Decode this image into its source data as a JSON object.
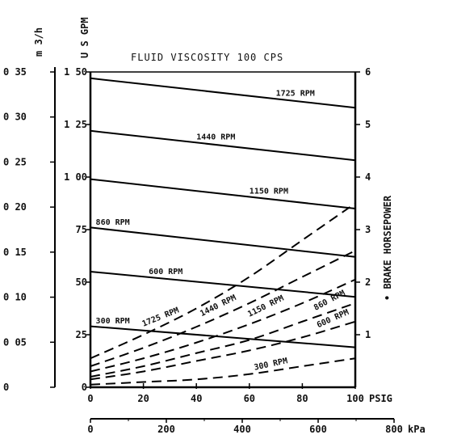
{
  "chart_data": {
    "type": "line",
    "title": "FLUID VISCOSITY 100 CPS",
    "x_axis": {
      "label": "PSIG",
      "ticks": [
        "0",
        "20",
        "40",
        "60",
        "80",
        "100"
      ],
      "range": [
        0,
        100
      ]
    },
    "x2_axis": {
      "label": "kPa",
      "ticks": [
        "0",
        "200",
        "400",
        "600",
        "800"
      ],
      "range": [
        0,
        800
      ]
    },
    "y_m3h_axis": {
      "label": "m 3/h",
      "ticks": [
        "0",
        "0 05",
        "0 10",
        "0 15",
        "0 20",
        "0 25",
        "0 30",
        "0 35"
      ],
      "range": [
        0,
        0.35
      ]
    },
    "y_gpm_axis": {
      "label": "U S GPM",
      "ticks": [
        "0",
        "25",
        "50",
        "75",
        "1 00",
        "1 25",
        "1 50"
      ],
      "range": [
        0,
        1.5
      ]
    },
    "y_bhp_axis": {
      "label": "BRAKE HORSEPOWER",
      "bullet": "•",
      "ticks": [
        "1",
        "2",
        "3",
        "4",
        "5",
        "6"
      ],
      "range": [
        0,
        6
      ]
    },
    "flow_series": [
      {
        "name": "1725 RPM",
        "axis": "gpm",
        "x": [
          0,
          100
        ],
        "y": [
          1.47,
          1.33
        ]
      },
      {
        "name": "1440 RPM",
        "axis": "gpm",
        "x": [
          0,
          100
        ],
        "y": [
          1.22,
          1.08
        ]
      },
      {
        "name": "1150 RPM",
        "axis": "gpm",
        "x": [
          0,
          100
        ],
        "y": [
          0.99,
          0.85
        ]
      },
      {
        "name": "860 RPM",
        "axis": "gpm",
        "x": [
          0,
          100
        ],
        "y": [
          0.76,
          0.62
        ]
      },
      {
        "name": "600 RPM",
        "axis": "gpm",
        "x": [
          0,
          100
        ],
        "y": [
          0.55,
          0.43
        ]
      },
      {
        "name": "300 RPM",
        "axis": "gpm",
        "x": [
          0,
          100
        ],
        "y": [
          0.29,
          0.19
        ]
      }
    ],
    "power_series": [
      {
        "name": "1725 RPM",
        "axis": "bhp",
        "x": [
          0,
          20,
          40,
          60,
          80,
          100
        ],
        "y": [
          0.55,
          1.0,
          1.5,
          2.1,
          2.8,
          3.5
        ]
      },
      {
        "name": "1440 RPM",
        "axis": "bhp",
        "x": [
          0,
          20,
          40,
          60,
          80,
          100
        ],
        "y": [
          0.4,
          0.75,
          1.15,
          1.6,
          2.1,
          2.6
        ]
      },
      {
        "name": "1150 RPM",
        "axis": "bhp",
        "x": [
          0,
          20,
          40,
          60,
          80,
          100
        ],
        "y": [
          0.3,
          0.55,
          0.85,
          1.2,
          1.6,
          2.05
        ]
      },
      {
        "name": "860 RPM",
        "axis": "bhp",
        "x": [
          0,
          20,
          40,
          60,
          80,
          100
        ],
        "y": [
          0.2,
          0.4,
          0.65,
          0.9,
          1.25,
          1.6
        ]
      },
      {
        "name": "600 RPM",
        "axis": "bhp",
        "x": [
          0,
          20,
          40,
          60,
          80,
          100
        ],
        "y": [
          0.15,
          0.3,
          0.5,
          0.7,
          0.95,
          1.25
        ]
      },
      {
        "name": "300 RPM",
        "axis": "bhp",
        "x": [
          0,
          20,
          40,
          60,
          80,
          100
        ],
        "y": [
          0.05,
          0.1,
          0.15,
          0.25,
          0.4,
          0.55
        ]
      }
    ],
    "grid": false,
    "legend": "none"
  }
}
